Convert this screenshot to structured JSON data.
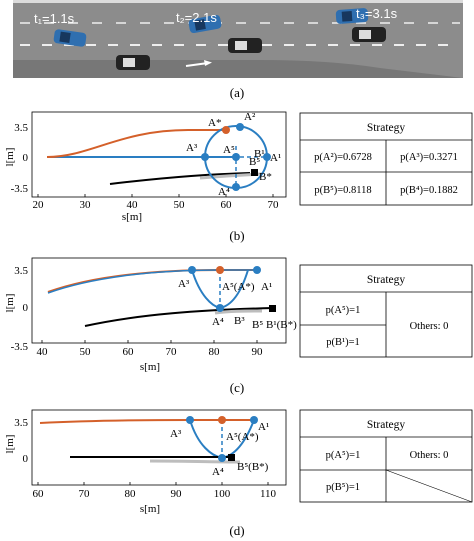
{
  "panel_a": {
    "caption": "(a)",
    "times": [
      "t₁=1.1s",
      "t₂=2.1s",
      "t₃=3.1s"
    ],
    "colors": {
      "road": "#8a8a8a",
      "ego_car": "#2f6fb0",
      "other_car": "#222222"
    }
  },
  "panel_b": {
    "caption": "(b)",
    "xlabel": "s[m]",
    "ylabel": "l[m]",
    "x_ticks": [
      "20",
      "30",
      "40",
      "50",
      "60",
      "70"
    ],
    "y_ticks": [
      "3.5",
      "0",
      "-3.5"
    ],
    "points": [
      "A*",
      "A²",
      "A³",
      "A⁵",
      "A¹",
      "A⁴",
      "B⁵",
      "B¹",
      "B*"
    ],
    "strategy": {
      "title": "Strategy",
      "cells": [
        "p(A²)=0.6728",
        "p(A³)=0.3271",
        "p(B⁵)=0.8118",
        "p(B⁴)=0.1882"
      ]
    }
  },
  "panel_c": {
    "caption": "(c)",
    "xlabel": "s[m]",
    "ylabel": "l[m]",
    "x_ticks": [
      "40",
      "50",
      "60",
      "70",
      "80",
      "90"
    ],
    "y_ticks": [
      "3.5",
      "0",
      "-3.5"
    ],
    "points": [
      "A³",
      "A⁵(A*)",
      "A¹",
      "A⁴",
      "B³",
      "B⁵",
      "B¹(B*)"
    ],
    "strategy": {
      "title": "Strategy",
      "cells": [
        "p(A⁵)=1",
        "p(B¹)=1",
        "Others: 0"
      ]
    }
  },
  "panel_d": {
    "caption": "(d)",
    "xlabel": "s[m]",
    "ylabel": "l[m]",
    "x_ticks": [
      "60",
      "70",
      "80",
      "90",
      "100",
      "110"
    ],
    "y_ticks": [
      "3.5",
      "0"
    ],
    "points": [
      "A³",
      "A⁵(A*)",
      "A¹",
      "A⁴",
      "B⁵(B*)"
    ],
    "strategy": {
      "title": "Strategy",
      "cells": [
        "p(A⁵)=1",
        "Others: 0",
        "p(B⁵)=1"
      ]
    }
  },
  "colors": {
    "ego_path": "#d4602a",
    "blue": "#2a7ec2",
    "black_path": "#000000",
    "gray_path": "#bdbdbd"
  }
}
